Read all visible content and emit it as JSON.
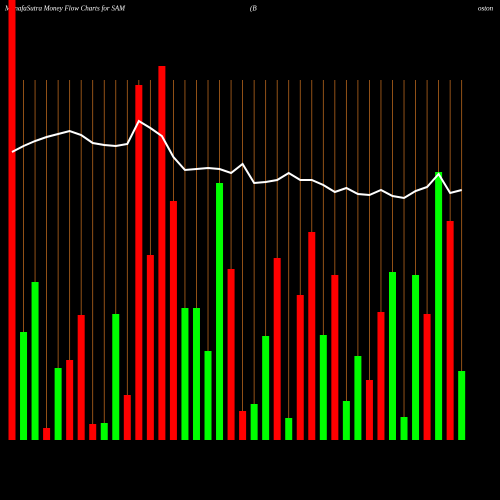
{
  "chart_data": {
    "type": "bar",
    "title": "MunafaSutra  Money Flow  Charts for SAM",
    "subtitle": "(B",
    "subtitle_end": "oston",
    "categories": [
      null,
      null,
      null,
      null,
      null,
      null,
      null,
      null,
      null,
      null,
      null,
      null,
      null,
      null,
      null,
      null,
      null,
      null,
      null,
      null,
      null,
      null,
      null,
      null,
      null,
      null,
      null,
      null,
      null,
      null,
      null,
      null,
      null,
      null,
      null,
      null,
      null,
      null,
      null,
      null
    ],
    "values": [
      440,
      108,
      158,
      12,
      72,
      80,
      125,
      16,
      17,
      126,
      45,
      355,
      185,
      374,
      239,
      132,
      132,
      89,
      257,
      171,
      29,
      36,
      104,
      182,
      22,
      145,
      208,
      105,
      165,
      39,
      84,
      60,
      128,
      168,
      23,
      165,
      126,
      268,
      219,
      69
    ],
    "colors": [
      "#ff0000",
      "#00ff00",
      "#00ff00",
      "#ff0000",
      "#00ff00",
      "#ff0000",
      "#ff0000",
      "#ff0000",
      "#00ff00",
      "#00ff00",
      "#ff0000",
      "#ff0000",
      "#ff0000",
      "#ff0000",
      "#ff0000",
      "#00ff00",
      "#00ff00",
      "#00ff00",
      "#00ff00",
      "#ff0000",
      "#ff0000",
      "#00ff00",
      "#00ff00",
      "#ff0000",
      "#00ff00",
      "#ff0000",
      "#ff0000",
      "#00ff00",
      "#ff0000",
      "#00ff00",
      "#00ff00",
      "#ff0000",
      "#ff0000",
      "#00ff00",
      "#00ff00",
      "#00ff00",
      "#ff0000",
      "#00ff00",
      "#ff0000",
      "#00ff00"
    ],
    "line": {
      "color": "#ffffff",
      "values": [
        288,
        294,
        299,
        303,
        306,
        309,
        305,
        297,
        295,
        294,
        296,
        319,
        312,
        304,
        283,
        270,
        271,
        272,
        271,
        267,
        276,
        257,
        258,
        260,
        267,
        260,
        260,
        255,
        248,
        252,
        246,
        245,
        250,
        244,
        242,
        249,
        253,
        266,
        247,
        250
      ]
    },
    "ylim": [
      0,
      440
    ],
    "grid_color": "#b5651d"
  }
}
